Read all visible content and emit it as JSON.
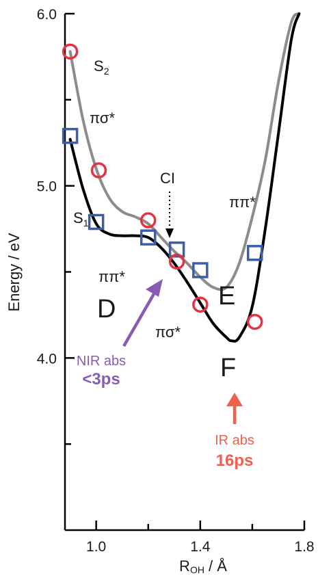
{
  "chart_data": {
    "type": "line",
    "xlabel_main": "R",
    "xlabel_sub": "OH",
    "xlabel_unit": " / Å",
    "ylabel": "Energy / eV",
    "xlim": [
      0.88,
      1.8
    ],
    "ylim": [
      3.0,
      6.0
    ],
    "x_ticks": [
      1.0,
      1.4,
      1.8
    ],
    "x_tick_labels": [
      "1.0",
      "1.4",
      "1.8"
    ],
    "x_minor_ticks": [
      1.2,
      1.6
    ],
    "y_ticks": [
      4.0,
      5.0,
      6.0
    ],
    "y_tick_labels": [
      "4.0",
      "5.0",
      "6.0"
    ],
    "y_minor_ticks": [
      3.5,
      4.5,
      5.5
    ],
    "series": [
      {
        "name": "S2",
        "color": "#8c8c8c",
        "x": [
          0.9,
          0.95,
          1.0,
          1.05,
          1.1,
          1.15,
          1.2,
          1.25,
          1.3,
          1.35,
          1.4,
          1.45,
          1.5,
          1.55,
          1.6,
          1.65,
          1.7,
          1.75,
          1.78
        ],
        "y": [
          5.78,
          5.38,
          5.1,
          4.93,
          4.85,
          4.82,
          4.78,
          4.7,
          4.62,
          4.55,
          4.47,
          4.41,
          4.41,
          4.55,
          4.82,
          5.15,
          5.6,
          5.95,
          6.0
        ]
      },
      {
        "name": "S1",
        "color": "#000000",
        "x": [
          0.9,
          0.95,
          1.0,
          1.05,
          1.1,
          1.15,
          1.2,
          1.25,
          1.3,
          1.35,
          1.4,
          1.45,
          1.5,
          1.52,
          1.55,
          1.6,
          1.65,
          1.7,
          1.75,
          1.78
        ],
        "y": [
          5.27,
          4.98,
          4.78,
          4.72,
          4.71,
          4.71,
          4.7,
          4.64,
          4.55,
          4.44,
          4.32,
          4.2,
          4.12,
          4.1,
          4.12,
          4.3,
          4.75,
          5.3,
          5.85,
          6.0
        ]
      }
    ],
    "circle_markers": {
      "color": "#e63240",
      "points": [
        {
          "x": 0.9,
          "y": 5.78
        },
        {
          "x": 1.01,
          "y": 5.09
        },
        {
          "x": 1.2,
          "y": 4.8
        },
        {
          "x": 1.31,
          "y": 4.56
        },
        {
          "x": 1.4,
          "y": 4.31
        },
        {
          "x": 1.61,
          "y": 4.21
        }
      ]
    },
    "square_markers": {
      "color": "#3a5eaa",
      "points": [
        {
          "x": 0.9,
          "y": 5.29
        },
        {
          "x": 1.0,
          "y": 4.79
        },
        {
          "x": 1.2,
          "y": 4.7
        },
        {
          "x": 1.31,
          "y": 4.63
        },
        {
          "x": 1.4,
          "y": 4.51
        },
        {
          "x": 1.61,
          "y": 4.61
        }
      ]
    },
    "annotations": {
      "s2": {
        "main": "S",
        "sub": "2"
      },
      "s1": {
        "main": "S",
        "sub": "1"
      },
      "pisig_top": "πσ*",
      "pipi_left": "ππ*",
      "pipi_right": "ππ*",
      "pisig_low": "πσ*",
      "ci": "CI",
      "d": "D",
      "e": "E",
      "f": "F",
      "nir_line1": "NIR abs",
      "nir_line2": "<3ps",
      "ir_line1": "IR abs",
      "ir_line2": "16ps"
    },
    "colors": {
      "purple": "#8a5bb3",
      "orange": "#f0604a"
    }
  }
}
